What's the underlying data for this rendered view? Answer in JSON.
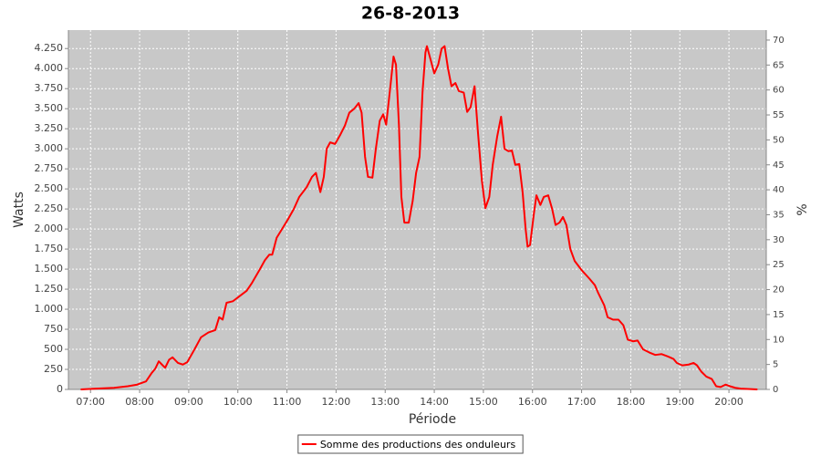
{
  "chart_data": {
    "type": "line",
    "title": "26-8-2013",
    "x_label": "Période",
    "y_label": "Watts",
    "y2_label": "%",
    "xlim": [
      6.55,
      20.76
    ],
    "ylim": [
      0,
      4480
    ],
    "y2lim": [
      0,
      72
    ],
    "grid": true,
    "legend": "bottom",
    "xticks": [
      {
        "value": 7,
        "label": "07:00"
      },
      {
        "value": 8,
        "label": "08:00"
      },
      {
        "value": 9,
        "label": "09:00"
      },
      {
        "value": 10,
        "label": "10:00"
      },
      {
        "value": 11,
        "label": "11:00"
      },
      {
        "value": 12,
        "label": "12:00"
      },
      {
        "value": 13,
        "label": "13:00"
      },
      {
        "value": 14,
        "label": "14:00"
      },
      {
        "value": 15,
        "label": "15:00"
      },
      {
        "value": 16,
        "label": "16:00"
      },
      {
        "value": 17,
        "label": "17:00"
      },
      {
        "value": 18,
        "label": "18:00"
      },
      {
        "value": 19,
        "label": "19:00"
      },
      {
        "value": 20,
        "label": "20:00"
      }
    ],
    "yticks": [
      0,
      250,
      500,
      750,
      {
        "value": 1000,
        "label": "1.000"
      },
      {
        "value": 1250,
        "label": "1.250"
      },
      {
        "value": 1500,
        "label": "1.500"
      },
      {
        "value": 1750,
        "label": "1.750"
      },
      {
        "value": 2000,
        "label": "2.000"
      },
      {
        "value": 2250,
        "label": "2.250"
      },
      {
        "value": 2500,
        "label": "2.500"
      },
      {
        "value": 2750,
        "label": "2.750"
      },
      {
        "value": 3000,
        "label": "3.000"
      },
      {
        "value": 3250,
        "label": "3.250"
      },
      {
        "value": 3500,
        "label": "3.500"
      },
      {
        "value": 3750,
        "label": "3.750"
      },
      {
        "value": 4000,
        "label": "4.000"
      },
      {
        "value": 4250,
        "label": "4.250"
      }
    ],
    "y2ticks": [
      0,
      5,
      10,
      15,
      20,
      25,
      30,
      35,
      40,
      45,
      50,
      55,
      60,
      65,
      70
    ],
    "x": [
      6.8,
      7.11,
      7.48,
      7.76,
      7.95,
      8.13,
      8.24,
      8.32,
      8.39,
      8.47,
      8.52,
      8.6,
      8.67,
      8.78,
      8.88,
      8.97,
      9.1,
      9.25,
      9.4,
      9.54,
      9.62,
      9.69,
      9.77,
      9.9,
      10.03,
      10.18,
      10.29,
      10.45,
      10.55,
      10.64,
      10.7,
      10.79,
      10.92,
      11.03,
      11.14,
      11.25,
      11.4,
      11.51,
      11.59,
      11.68,
      11.75,
      11.81,
      11.88,
      11.98,
      12.09,
      12.18,
      12.27,
      12.37,
      12.46,
      12.52,
      12.59,
      12.65,
      12.74,
      12.81,
      12.89,
      12.96,
      13.02,
      13.11,
      13.17,
      13.22,
      13.28,
      13.33,
      13.39,
      13.48,
      13.56,
      13.63,
      13.7,
      13.76,
      13.82,
      13.85,
      13.93,
      14.0,
      14.08,
      14.15,
      14.21,
      14.28,
      14.35,
      14.43,
      14.5,
      14.6,
      14.67,
      14.74,
      14.82,
      14.89,
      14.97,
      15.04,
      15.12,
      15.19,
      15.28,
      15.36,
      15.43,
      15.51,
      15.58,
      15.65,
      15.73,
      15.8,
      15.86,
      15.9,
      15.95,
      16.03,
      16.08,
      16.16,
      16.23,
      16.32,
      16.4,
      16.47,
      16.55,
      16.62,
      16.69,
      16.77,
      16.86,
      17.01,
      17.16,
      17.27,
      17.34,
      17.46,
      17.53,
      17.64,
      17.75,
      17.85,
      17.94,
      18.05,
      18.14,
      18.25,
      18.38,
      18.5,
      18.63,
      18.76,
      18.87,
      18.94,
      19.05,
      19.18,
      19.28,
      19.35,
      19.44,
      19.54,
      19.65,
      19.74,
      19.83,
      19.93,
      20.02,
      20.13,
      20.24,
      20.58
    ],
    "series": [
      {
        "name": "Somme des productions des onduleurs",
        "color": "#ff0000",
        "values": [
          0,
          10,
          20,
          40,
          60,
          100,
          200,
          260,
          350,
          300,
          270,
          370,
          400,
          330,
          310,
          340,
          480,
          650,
          710,
          740,
          900,
          870,
          1080,
          1100,
          1160,
          1230,
          1330,
          1500,
          1610,
          1680,
          1680,
          1890,
          2020,
          2130,
          2250,
          2400,
          2520,
          2650,
          2700,
          2460,
          2650,
          3000,
          3080,
          3060,
          3180,
          3290,
          3450,
          3500,
          3570,
          3450,
          2900,
          2650,
          2640,
          3000,
          3350,
          3430,
          3300,
          3800,
          4150,
          4050,
          3300,
          2400,
          2080,
          2080,
          2350,
          2700,
          2900,
          3700,
          4200,
          4280,
          4100,
          3940,
          4050,
          4250,
          4280,
          4000,
          3780,
          3820,
          3720,
          3700,
          3460,
          3520,
          3780,
          3200,
          2600,
          2260,
          2400,
          2800,
          3150,
          3400,
          3000,
          2970,
          2980,
          2800,
          2810,
          2450,
          2000,
          1780,
          1800,
          2200,
          2420,
          2300,
          2400,
          2420,
          2250,
          2050,
          2080,
          2150,
          2050,
          1750,
          1600,
          1480,
          1380,
          1300,
          1200,
          1050,
          900,
          870,
          870,
          800,
          620,
          600,
          610,
          500,
          460,
          430,
          440,
          410,
          380,
          330,
          300,
          310,
          330,
          300,
          220,
          160,
          130,
          40,
          30,
          60,
          40,
          20,
          10,
          0
        ]
      }
    ]
  }
}
